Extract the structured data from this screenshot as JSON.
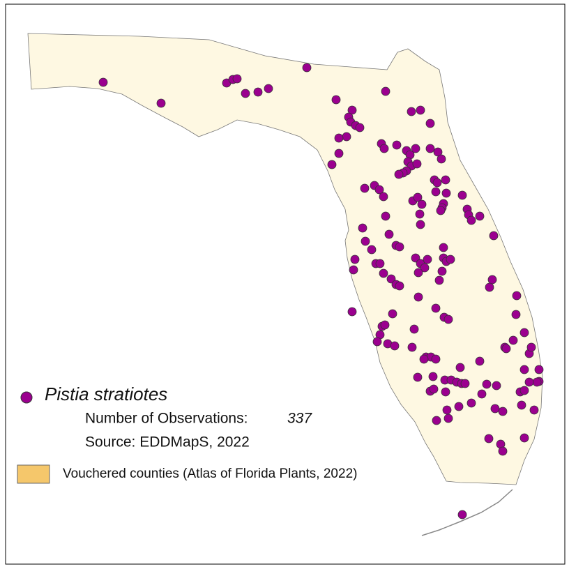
{
  "legend": {
    "species": "Pistia stratiotes",
    "observations_label": "Number of Observations:",
    "observations_count": 337,
    "source": "Source: EDDMapS, 2022",
    "vouchered": "Vouchered counties (Atlas of Florida Plants, 2022)"
  }
}
